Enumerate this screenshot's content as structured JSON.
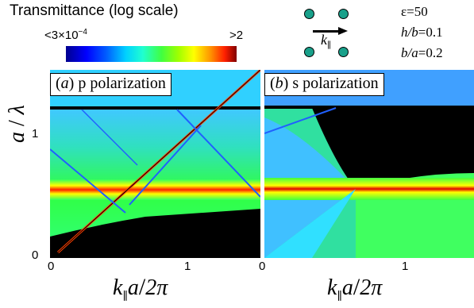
{
  "colorbar": {
    "title": "Transmittance (log scale)",
    "min_label": "<3×10",
    "min_exp": "−4",
    "max_label": ">2",
    "colors": [
      "#00008f",
      "#0000ff",
      "#00d0ff",
      "#40ff40",
      "#ffff00",
      "#ff2000",
      "#800000"
    ]
  },
  "structure_inset": {
    "k_label": "k",
    "k_sub": "∥",
    "dot_color": "#19a08a"
  },
  "parameters": [
    {
      "symbol": "ε",
      "value": "=50"
    },
    {
      "symbol": "h/b",
      "value": "=0.1"
    },
    {
      "symbol": "b/a",
      "value": "=0.2"
    }
  ],
  "chart_data": [
    {
      "type": "heatmap",
      "panel_label": {
        "letter": "a",
        "text": " p polarization"
      },
      "xlim": [
        0,
        1.45
      ],
      "ylim": [
        0,
        1.5
      ],
      "x_ticks": [
        "0",
        "1"
      ],
      "y_ticks": [
        "0",
        "1"
      ],
      "xlabel": "k∥a/2π",
      "ylabel": "a / λ",
      "features": {
        "horizontal_band": {
          "y": 0.52,
          "color": "red"
        },
        "diagonal_line": {
          "from": [
            0,
            0
          ],
          "to": [
            1.45,
            1.5
          ]
        },
        "cutoff_line": {
          "y": 1.2
        },
        "dark_region": "below light line"
      }
    },
    {
      "type": "heatmap",
      "panel_label": {
        "letter": "b",
        "text": " s polarization"
      },
      "xlim": [
        0,
        1.5
      ],
      "ylim": [
        0,
        1.5
      ],
      "x_ticks": [
        "0",
        "1"
      ],
      "y_ticks": [
        "0",
        "1"
      ],
      "xlabel": "k∥a/2π",
      "ylabel": "",
      "features": {
        "horizontal_band": {
          "y": 0.52,
          "color": "red"
        },
        "crossing_point": [
          0.5,
          0.52
        ],
        "cutoff_line": {
          "y": 1.2
        },
        "dark_region": "above and right of crossing"
      }
    }
  ],
  "axis_text": {
    "x_main": "k",
    "x_sub": "∥",
    "x_rest": "a",
    "x_div": "/",
    "x_tail": "2π",
    "y_main": "a",
    "y_div": " / ",
    "y_tail": "λ"
  }
}
